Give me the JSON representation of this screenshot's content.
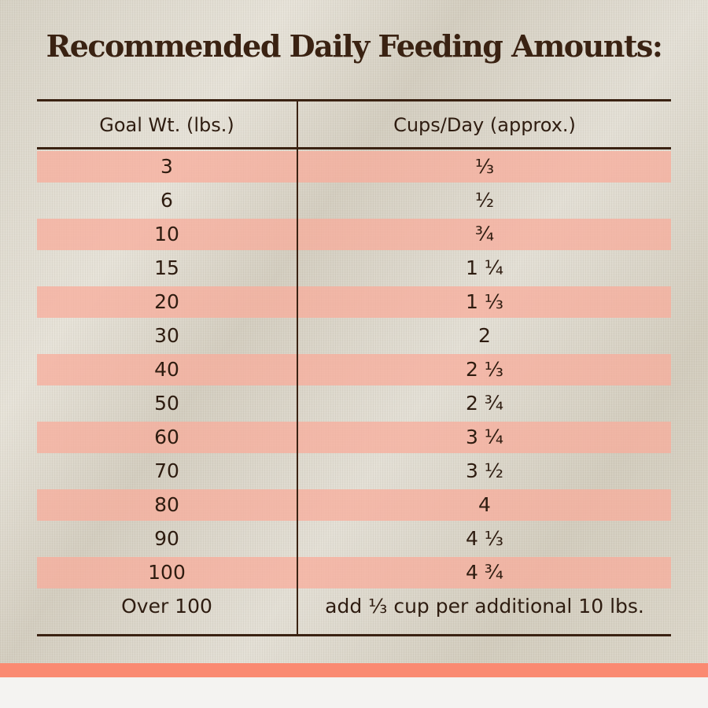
{
  "title": "Recommended Daily Feeding Amounts:",
  "table": {
    "headers": [
      "Goal Wt. (lbs.)",
      "Cups/Day (approx.)"
    ],
    "rows": [
      [
        "3",
        "⅓"
      ],
      [
        "6",
        "½"
      ],
      [
        "10",
        "¾"
      ],
      [
        "15",
        "1 ¼"
      ],
      [
        "20",
        "1 ⅓"
      ],
      [
        "30",
        "2"
      ],
      [
        "40",
        "2 ⅓"
      ],
      [
        "50",
        "2 ¾"
      ],
      [
        "60",
        "3 ¼"
      ],
      [
        "70",
        "3 ½"
      ],
      [
        "80",
        "4"
      ],
      [
        "90",
        "4 ⅓"
      ],
      [
        "100",
        "4 ¾"
      ],
      [
        "Over 100",
        "add ⅓ cup per additional 10 lbs."
      ]
    ]
  },
  "colors": {
    "stripe": "#f8ac9b",
    "band": "#fa8a72",
    "text": "#3a2212"
  }
}
